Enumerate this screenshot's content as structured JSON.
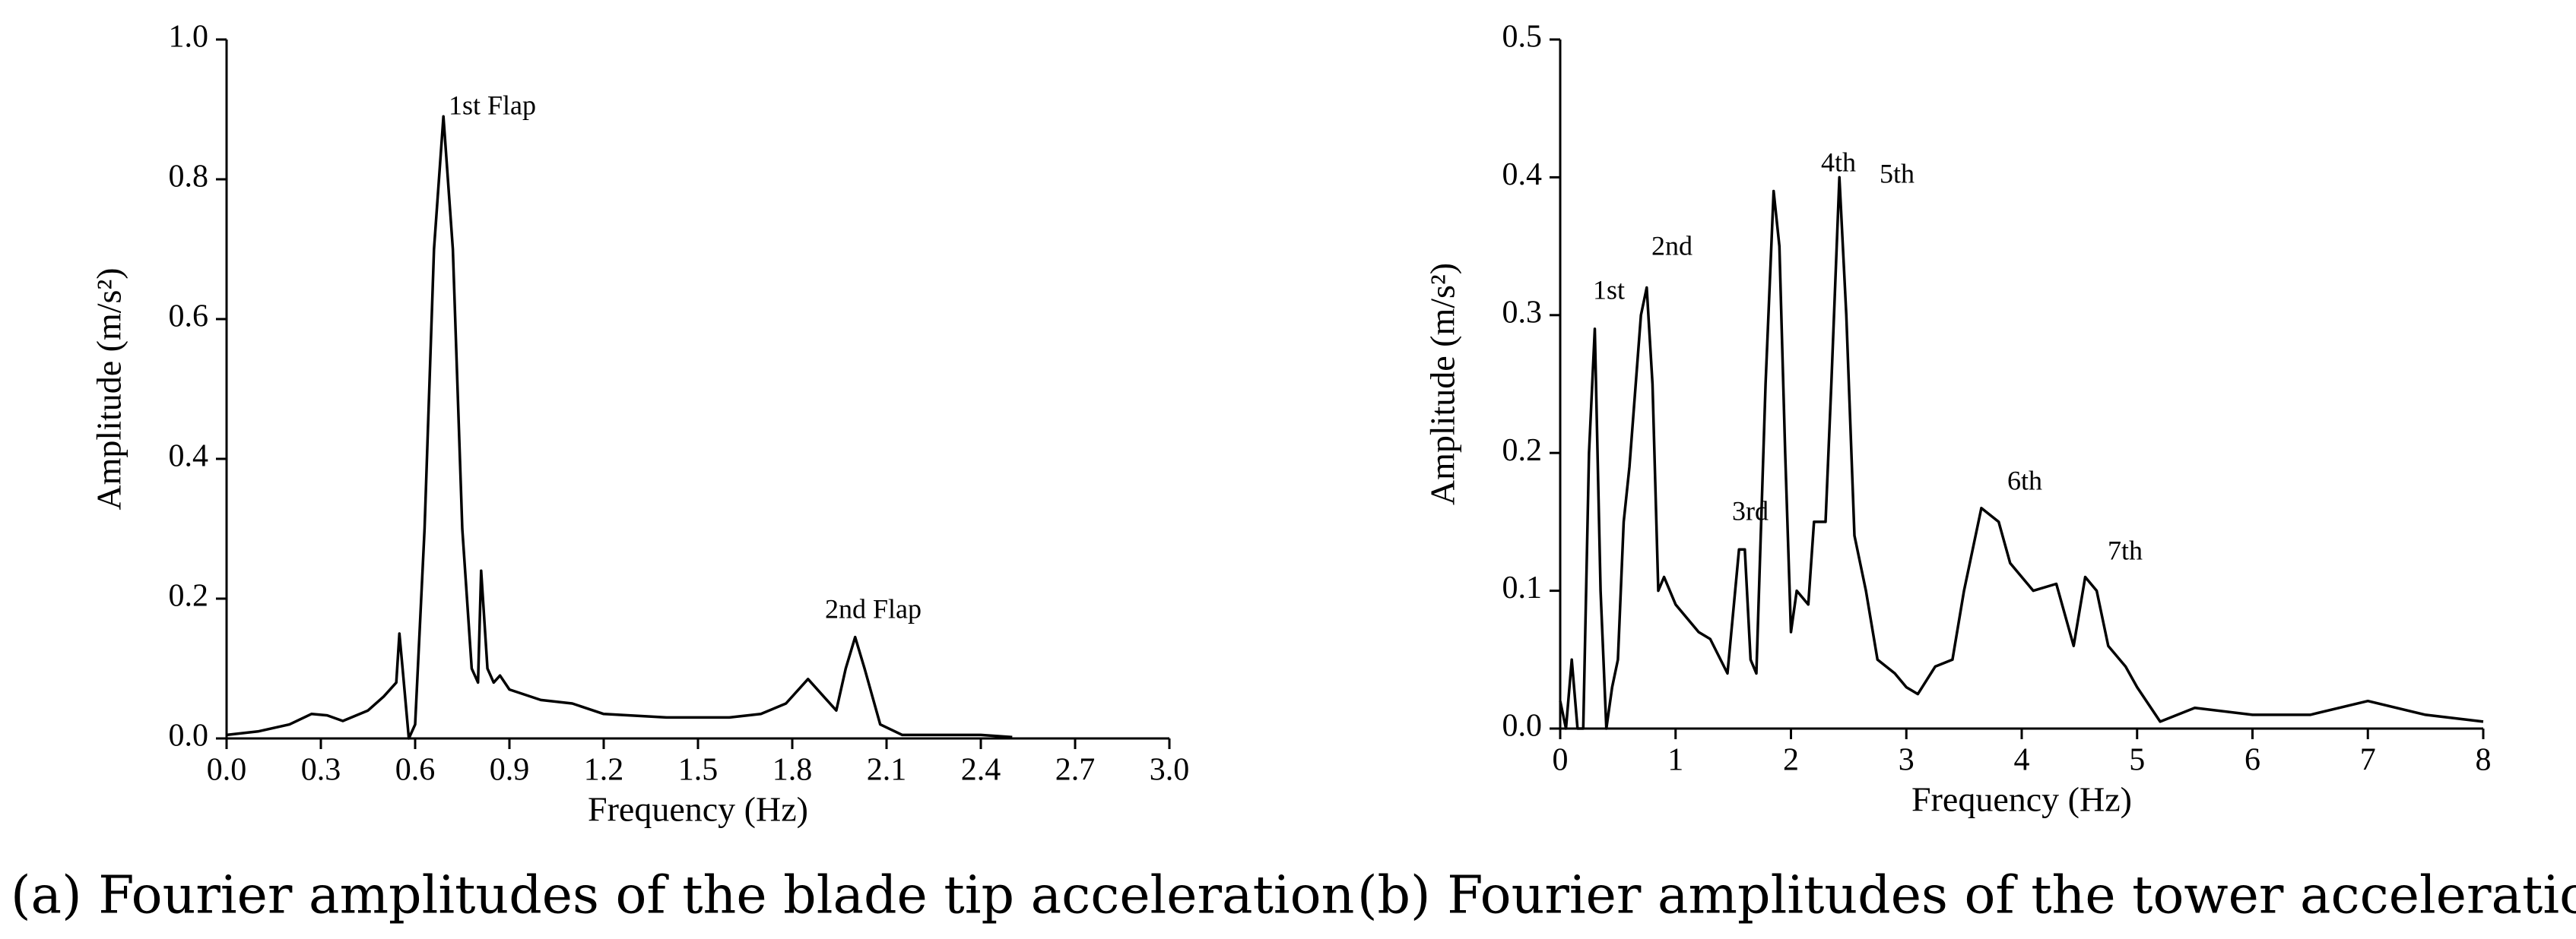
{
  "chart_data": [
    {
      "type": "line",
      "xlabel": "Frequency (Hz)",
      "ylabel": "Amplitude (m/s²)",
      "caption": "(a) Fourier amplitudes of the blade tip acceleration",
      "color": "#000000",
      "x": [
        0,
        0.1,
        0.2,
        0.27,
        0.32,
        0.37,
        0.45,
        0.5,
        0.54,
        0.55,
        0.56,
        0.58,
        0.6,
        0.63,
        0.66,
        0.69,
        0.72,
        0.75,
        0.78,
        0.8,
        0.81,
        0.83,
        0.85,
        0.87,
        0.9,
        1.0,
        1.1,
        1.2,
        1.4,
        1.6,
        1.7,
        1.78,
        1.85,
        1.9,
        1.94,
        1.97,
        2.0,
        2.03,
        2.08,
        2.15,
        2.4,
        2.5
      ],
      "values": [
        0.005,
        0.01,
        0.02,
        0.035,
        0.033,
        0.025,
        0.04,
        0.06,
        0.08,
        0.15,
        0.1,
        0.0,
        0.02,
        0.3,
        0.7,
        0.89,
        0.7,
        0.3,
        0.1,
        0.08,
        0.24,
        0.1,
        0.08,
        0.09,
        0.07,
        0.055,
        0.05,
        0.035,
        0.03,
        0.03,
        0.035,
        0.05,
        0.085,
        0.06,
        0.04,
        0.1,
        0.145,
        0.1,
        0.02,
        0.005,
        0.005,
        0.002
      ],
      "xlim": [
        0,
        3
      ],
      "ylim": [
        0,
        1
      ],
      "xticks": [
        {
          "value": 0,
          "label": "0.0"
        },
        0.3,
        0.6,
        0.9,
        1.2,
        1.5,
        1.8,
        2.1,
        2.4,
        2.7,
        {
          "value": 3,
          "label": "3.0"
        }
      ],
      "yticks": [
        {
          "value": 0,
          "label": "0.0"
        },
        0.2,
        0.4,
        0.6,
        0.8,
        {
          "value": 1,
          "label": "1.0"
        }
      ],
      "annotations": [
        "1st Flap",
        "2nd Flap"
      ]
    },
    {
      "type": "line",
      "xlabel": "Frequency (Hz)",
      "ylabel": "Amplitude (m/s²)",
      "caption": "(b) Fourier amplitudes of the tower acceleration",
      "color": "#000000",
      "x": [
        0,
        0.05,
        0.1,
        0.15,
        0.2,
        0.25,
        0.3,
        0.35,
        0.4,
        0.45,
        0.5,
        0.55,
        0.6,
        0.7,
        0.75,
        0.8,
        0.85,
        0.9,
        1.0,
        1.2,
        1.3,
        1.45,
        1.55,
        1.6,
        1.65,
        1.7,
        1.78,
        1.85,
        1.9,
        1.95,
        2.0,
        2.05,
        2.15,
        2.2,
        2.3,
        2.35,
        2.42,
        2.48,
        2.55,
        2.65,
        2.75,
        2.9,
        3.0,
        3.1,
        3.25,
        3.4,
        3.5,
        3.65,
        3.8,
        3.9,
        4.1,
        4.3,
        4.45,
        4.55,
        4.65,
        4.75,
        4.9,
        5.0,
        5.2,
        5.5,
        6.0,
        6.5,
        7.0,
        7.5,
        8.0
      ],
      "values": [
        0.02,
        0.0,
        0.05,
        0.0,
        0.0,
        0.2,
        0.29,
        0.1,
        0.0,
        0.03,
        0.05,
        0.15,
        0.19,
        0.3,
        0.32,
        0.25,
        0.1,
        0.11,
        0.09,
        0.07,
        0.065,
        0.04,
        0.13,
        0.13,
        0.05,
        0.04,
        0.25,
        0.39,
        0.35,
        0.2,
        0.07,
        0.1,
        0.09,
        0.15,
        0.15,
        0.25,
        0.4,
        0.3,
        0.14,
        0.1,
        0.05,
        0.04,
        0.03,
        0.025,
        0.045,
        0.05,
        0.1,
        0.16,
        0.15,
        0.12,
        0.1,
        0.105,
        0.06,
        0.11,
        0.1,
        0.06,
        0.045,
        0.03,
        0.005,
        0.015,
        0.01,
        0.01,
        0.02,
        0.01,
        0.005
      ],
      "xlim": [
        0,
        8
      ],
      "ylim": [
        0,
        0.5
      ],
      "xticks": [
        0,
        1,
        2,
        3,
        4,
        5,
        6,
        7,
        8
      ],
      "yticks": [
        {
          "value": 0,
          "label": "0.0"
        },
        0.1,
        0.2,
        0.3,
        0.4,
        0.5
      ],
      "annotations": [
        "1st",
        "2nd",
        "3rd",
        "4th",
        "5th",
        "6th",
        "7th"
      ]
    }
  ]
}
